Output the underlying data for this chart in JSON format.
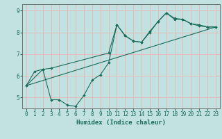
{
  "title": "",
  "xlabel": "Humidex (Indice chaleur)",
  "ylabel": "",
  "bg_color": "#c2e2e2",
  "grid_color": "#e8b8b8",
  "line_color": "#1a6b5a",
  "xlim": [
    -0.5,
    23.5
  ],
  "ylim": [
    4.5,
    9.3
  ],
  "xticks": [
    0,
    1,
    2,
    3,
    4,
    5,
    6,
    7,
    8,
    9,
    10,
    11,
    12,
    13,
    14,
    15,
    16,
    17,
    18,
    19,
    20,
    21,
    22,
    23
  ],
  "yticks": [
    5,
    6,
    7,
    8,
    9
  ],
  "line1_x": [
    0,
    1,
    2,
    3,
    4,
    5,
    6,
    7,
    8,
    9,
    10,
    11,
    12,
    13,
    14,
    15,
    16,
    17,
    18,
    19,
    20,
    21,
    22,
    23
  ],
  "line1_y": [
    5.55,
    6.2,
    6.3,
    4.9,
    4.9,
    4.65,
    4.6,
    5.1,
    5.8,
    6.05,
    6.6,
    8.35,
    7.85,
    7.6,
    7.55,
    8.0,
    8.5,
    8.9,
    8.6,
    8.6,
    8.4,
    8.3,
    8.25,
    8.25
  ],
  "line2_x": [
    0,
    23
  ],
  "line2_y": [
    5.55,
    8.25
  ],
  "line3_x": [
    0,
    2,
    3,
    10,
    11,
    12,
    13,
    14,
    15,
    16,
    17,
    18,
    19,
    20,
    21,
    22,
    23
  ],
  "line3_y": [
    5.55,
    6.3,
    6.35,
    7.05,
    8.35,
    7.85,
    7.6,
    7.55,
    8.05,
    8.5,
    8.9,
    8.65,
    8.6,
    8.4,
    8.35,
    8.25,
    8.25
  ]
}
